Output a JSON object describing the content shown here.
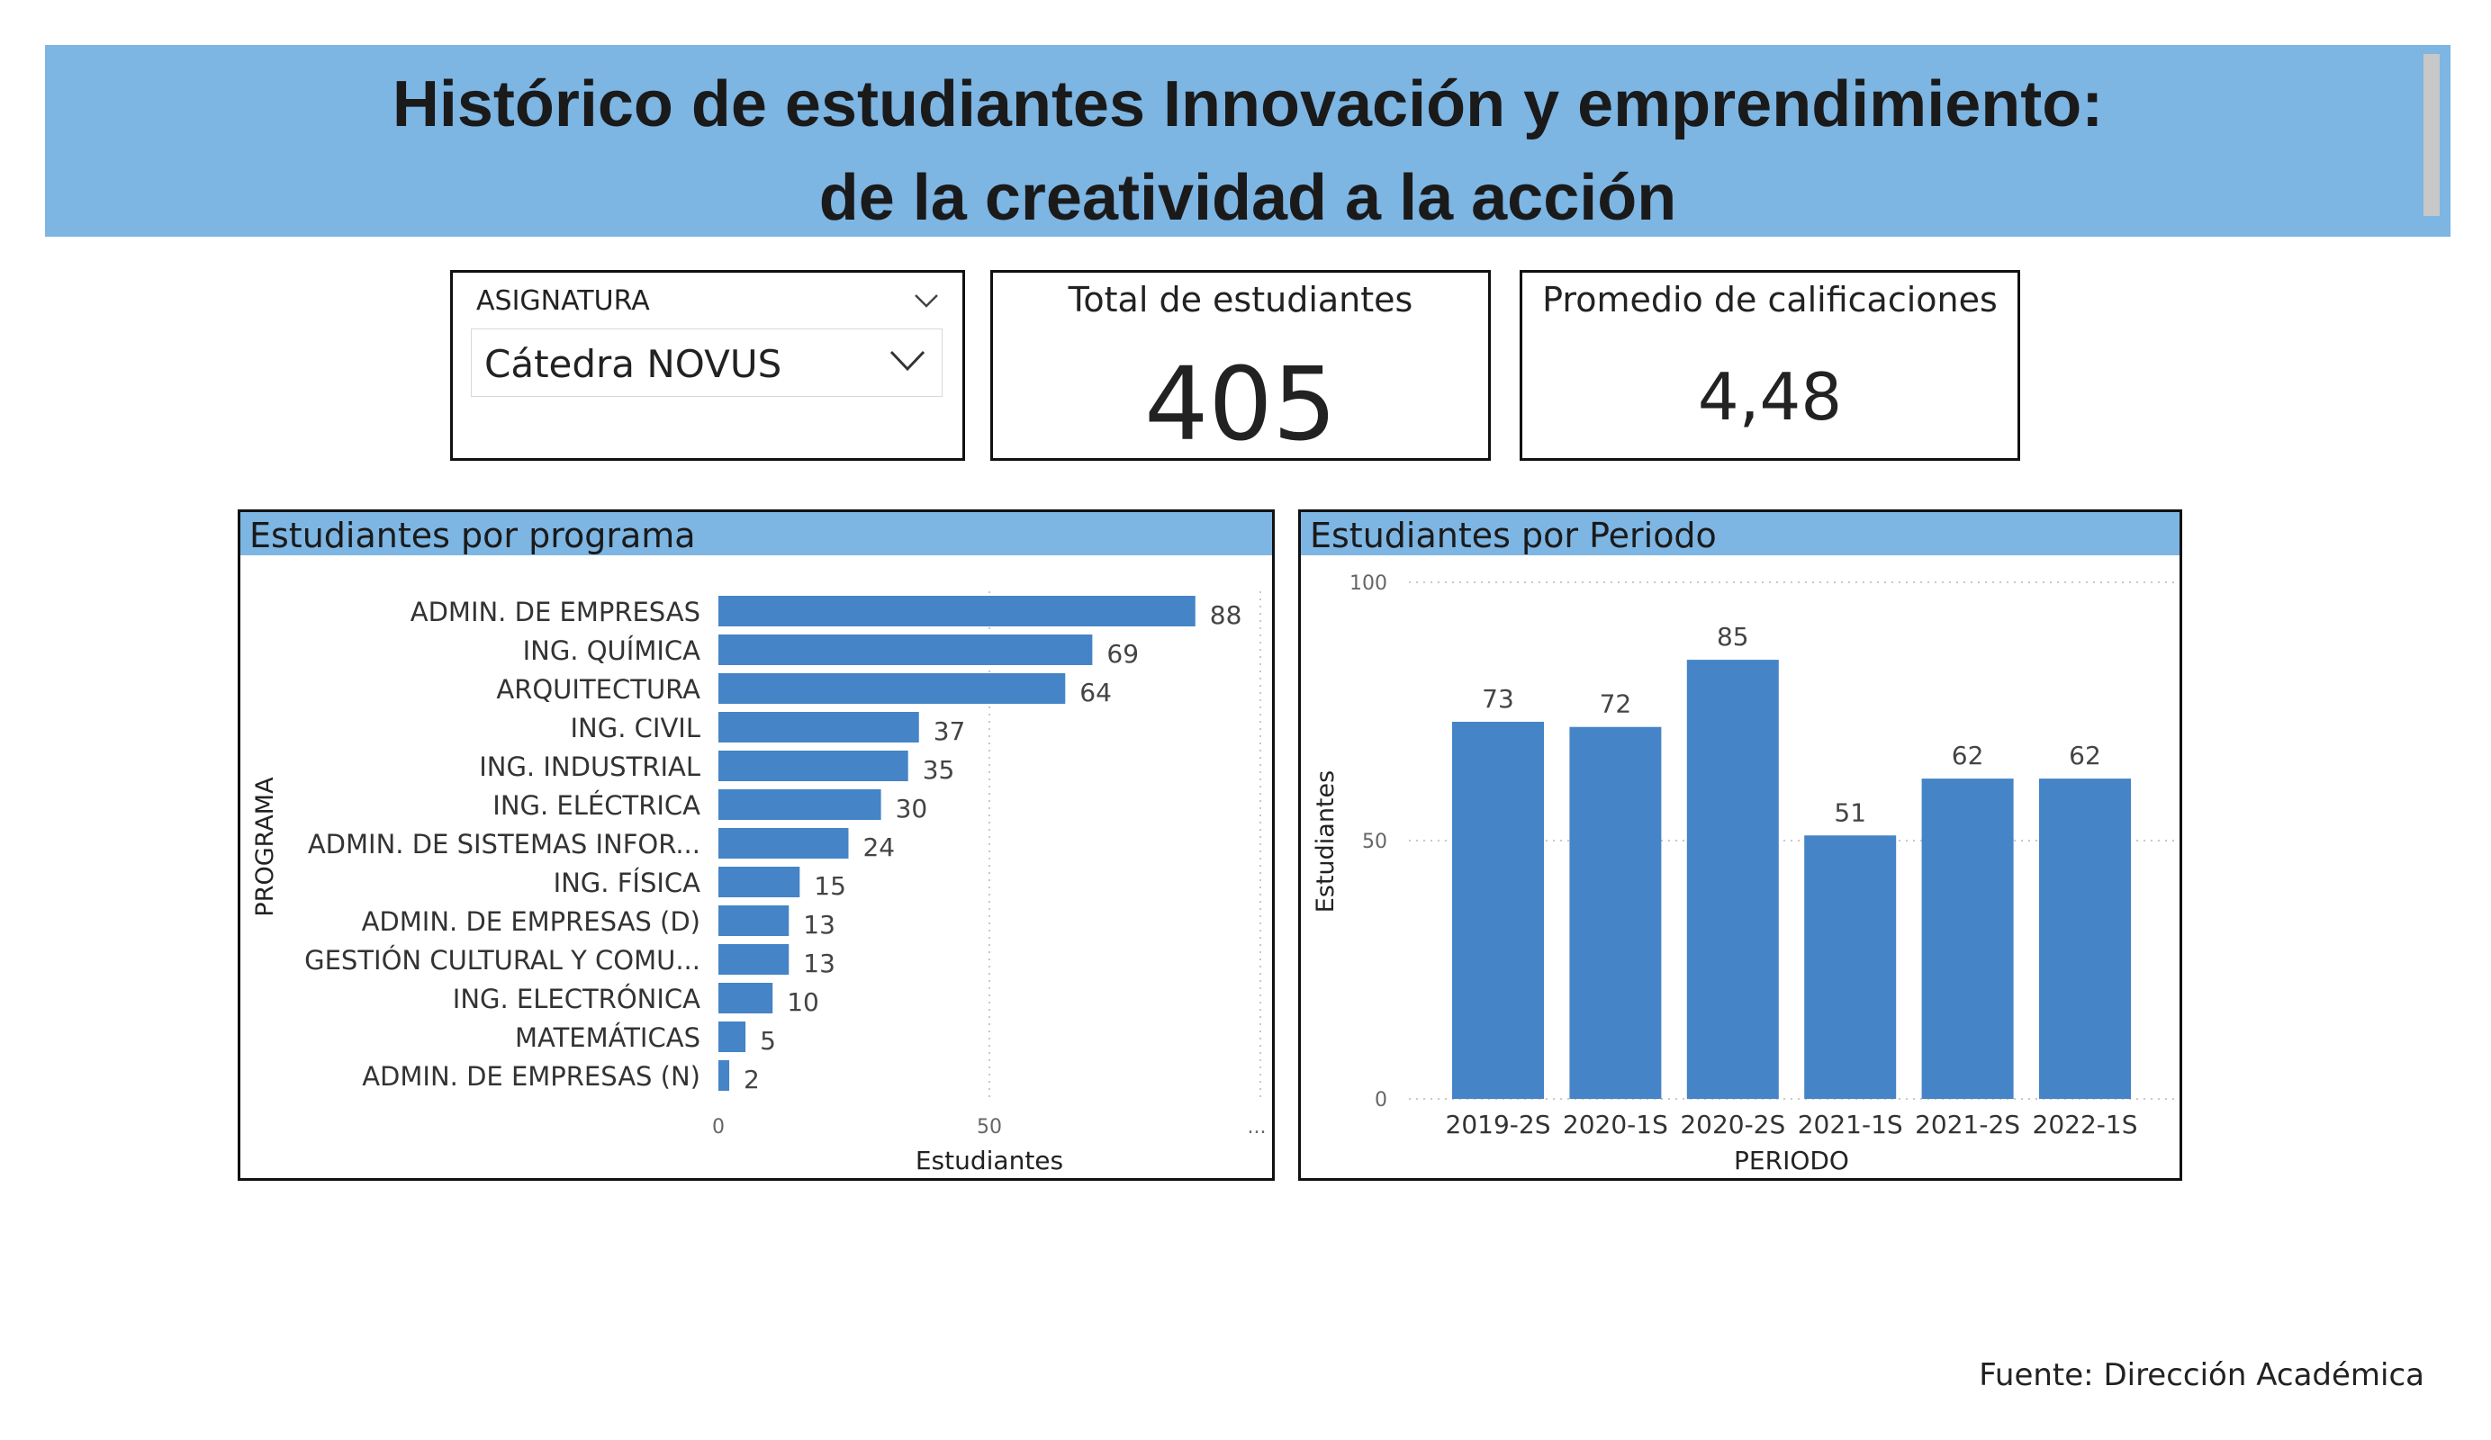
{
  "header": {
    "title_line1": "Histórico de estudiantes Innovación y emprendimiento:",
    "title_line2": "de la creatividad a la acción"
  },
  "slicer": {
    "label": "ASIGNATURA",
    "selected": "Cátedra NOVUS",
    "icon": "chevron-down-icon"
  },
  "kpis": {
    "total_label": "Total de estudiantes",
    "total_value": "405",
    "avg_label": "Promedio de calificaciones",
    "avg_value": "4,48"
  },
  "colors": {
    "banner": "#7db5e3",
    "bar": "#4584c6"
  },
  "chart_data": [
    {
      "type": "bar",
      "orientation": "horizontal",
      "title": "Estudiantes por programa",
      "xlabel": "Estudiantes",
      "ylabel": "PROGRAMA",
      "xlim": [
        0,
        100
      ],
      "xticks": [
        "0",
        "50",
        "..."
      ],
      "grid": true,
      "categories": [
        "ADMIN. DE EMPRESAS",
        "ING. QUÍMICA",
        "ARQUITECTURA",
        "ING. CIVIL",
        "ING. INDUSTRIAL",
        "ING. ELÉCTRICA",
        "ADMIN. DE SISTEMAS INFOR...",
        "ING. FÍSICA",
        "ADMIN. DE EMPRESAS (D)",
        "GESTIÓN CULTURAL Y COMU...",
        "ING. ELECTRÓNICA",
        "MATEMÁTICAS",
        "ADMIN. DE EMPRESAS (N)"
      ],
      "values": [
        88,
        69,
        64,
        37,
        35,
        30,
        24,
        15,
        13,
        13,
        10,
        5,
        2
      ]
    },
    {
      "type": "bar",
      "orientation": "vertical",
      "title": "Estudiantes por Periodo",
      "xlabel": "PERIODO",
      "ylabel": "Estudiantes",
      "ylim": [
        0,
        100
      ],
      "yticks": [
        "0",
        "50",
        "100"
      ],
      "grid": true,
      "categories": [
        "2019-2S",
        "2020-1S",
        "2020-2S",
        "2021-1S",
        "2021-2S",
        "2022-1S"
      ],
      "values": [
        73,
        72,
        85,
        51,
        62,
        62
      ]
    }
  ],
  "footer": {
    "source": "Fuente: Dirección Académica"
  }
}
